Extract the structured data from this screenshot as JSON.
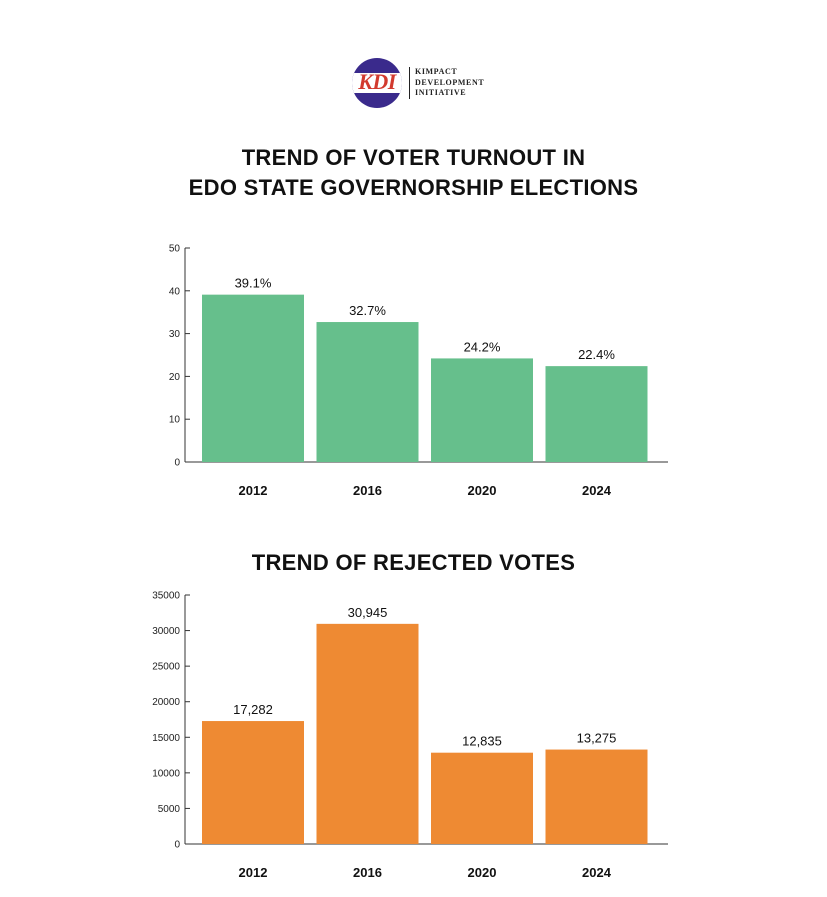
{
  "logo": {
    "mark": "KDI",
    "lines": [
      "KIMPACT",
      "DEVELOPMENT",
      "INITIATIVE"
    ]
  },
  "colors": {
    "turnout": "#66bf8c",
    "rejected": "#ee8a33",
    "axis": "#333333"
  },
  "chart_data": [
    {
      "type": "bar",
      "title_lines": [
        "TREND OF VOTER TURNOUT IN",
        "EDO STATE GOVERNORSHIP ELECTIONS"
      ],
      "categories": [
        "2012",
        "2016",
        "2020",
        "2024"
      ],
      "values": [
        39.1,
        32.7,
        24.2,
        22.4
      ],
      "data_labels": [
        "39.1%",
        "32.7%",
        "24.2%",
        "22.4%"
      ],
      "yticks": [
        "0",
        "10",
        "20",
        "30",
        "40",
        "50"
      ],
      "ylim": [
        0,
        50
      ],
      "xlabel": "",
      "ylabel": "",
      "grid": false,
      "legend": "none",
      "color": "#66bf8c"
    },
    {
      "type": "bar",
      "title": "TREND OF REJECTED VOTES",
      "categories": [
        "2012",
        "2016",
        "2020",
        "2024"
      ],
      "values": [
        17282,
        30945,
        12835,
        13275
      ],
      "data_labels": [
        "17,282",
        "30,945",
        "12,835",
        "13,275"
      ],
      "yticks": [
        "0",
        "5000",
        "10000",
        "15000",
        "20000",
        "25000",
        "30000",
        "35000"
      ],
      "ylim": [
        0,
        35000
      ],
      "xlabel": "",
      "ylabel": "",
      "grid": false,
      "legend": "none",
      "color": "#ee8a33"
    }
  ]
}
